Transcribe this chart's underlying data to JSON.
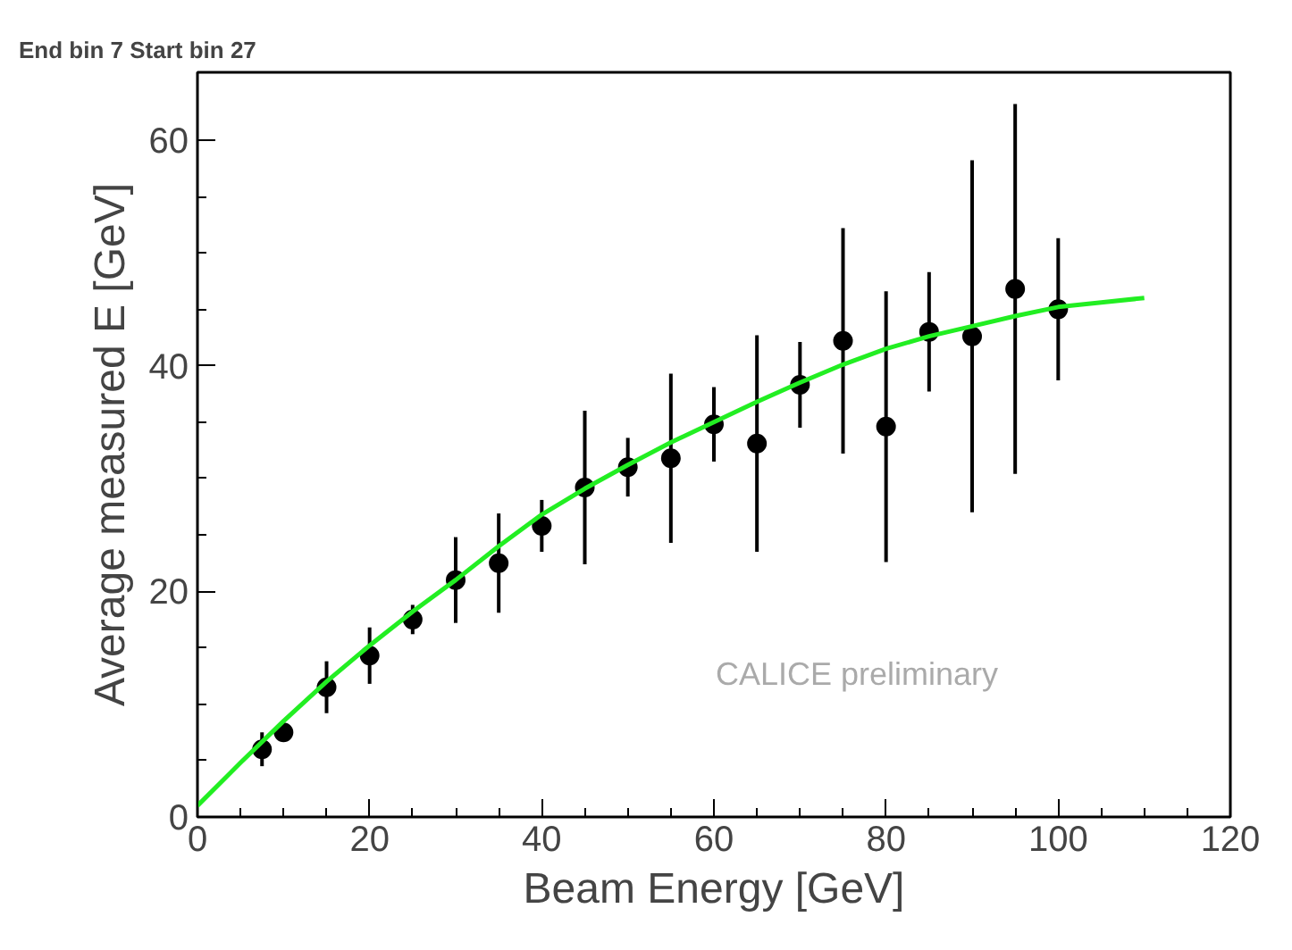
{
  "chart_data": {
    "type": "scatter",
    "title": "End bin 7 Start bin 27",
    "xlabel": "Beam Energy [GeV]",
    "ylabel": "Average measured E [GeV]",
    "annotations": [
      "CALICE preliminary"
    ],
    "xlim": [
      0,
      120
    ],
    "ylim": [
      0,
      66
    ],
    "xticks": [
      0,
      20,
      40,
      60,
      80,
      100,
      120
    ],
    "yticks": [
      0,
      20,
      40,
      60
    ],
    "grid": false,
    "series": [
      {
        "marker": "circle",
        "color": "#000000",
        "x": [
          7.5,
          10,
          15,
          20,
          25,
          30,
          35,
          40,
          45,
          50,
          55,
          60,
          65,
          70,
          75,
          80,
          85,
          90,
          95,
          100
        ],
        "values": [
          6,
          7.5,
          11.5,
          14.3,
          17.5,
          21,
          22.5,
          25.8,
          29.2,
          31,
          31.8,
          34.8,
          33.1,
          38.3,
          42.2,
          34.6,
          43,
          42.6,
          46.8,
          45
        ],
        "errors": [
          1.5,
          0.5,
          2.3,
          2.5,
          1.3,
          3.8,
          4.4,
          2.3,
          6.8,
          2.6,
          7.5,
          3.3,
          9.6,
          3.8,
          10,
          12,
          5.3,
          15.6,
          16.4,
          6.3
        ]
      },
      {
        "type": "line",
        "color": "#22ee22",
        "x": [
          0,
          5,
          10,
          15,
          20,
          25,
          30,
          35,
          40,
          45,
          50,
          55,
          60,
          65,
          70,
          75,
          80,
          85,
          90,
          95,
          100,
          105,
          110
        ],
        "values": [
          1,
          4.8,
          8.5,
          12,
          15.2,
          18.2,
          21,
          24,
          26.8,
          29.1,
          31.2,
          33.2,
          35,
          36.8,
          38.5,
          40.1,
          41.5,
          42.6,
          43.5,
          44.4,
          45.2,
          45.6,
          46
        ]
      }
    ]
  }
}
